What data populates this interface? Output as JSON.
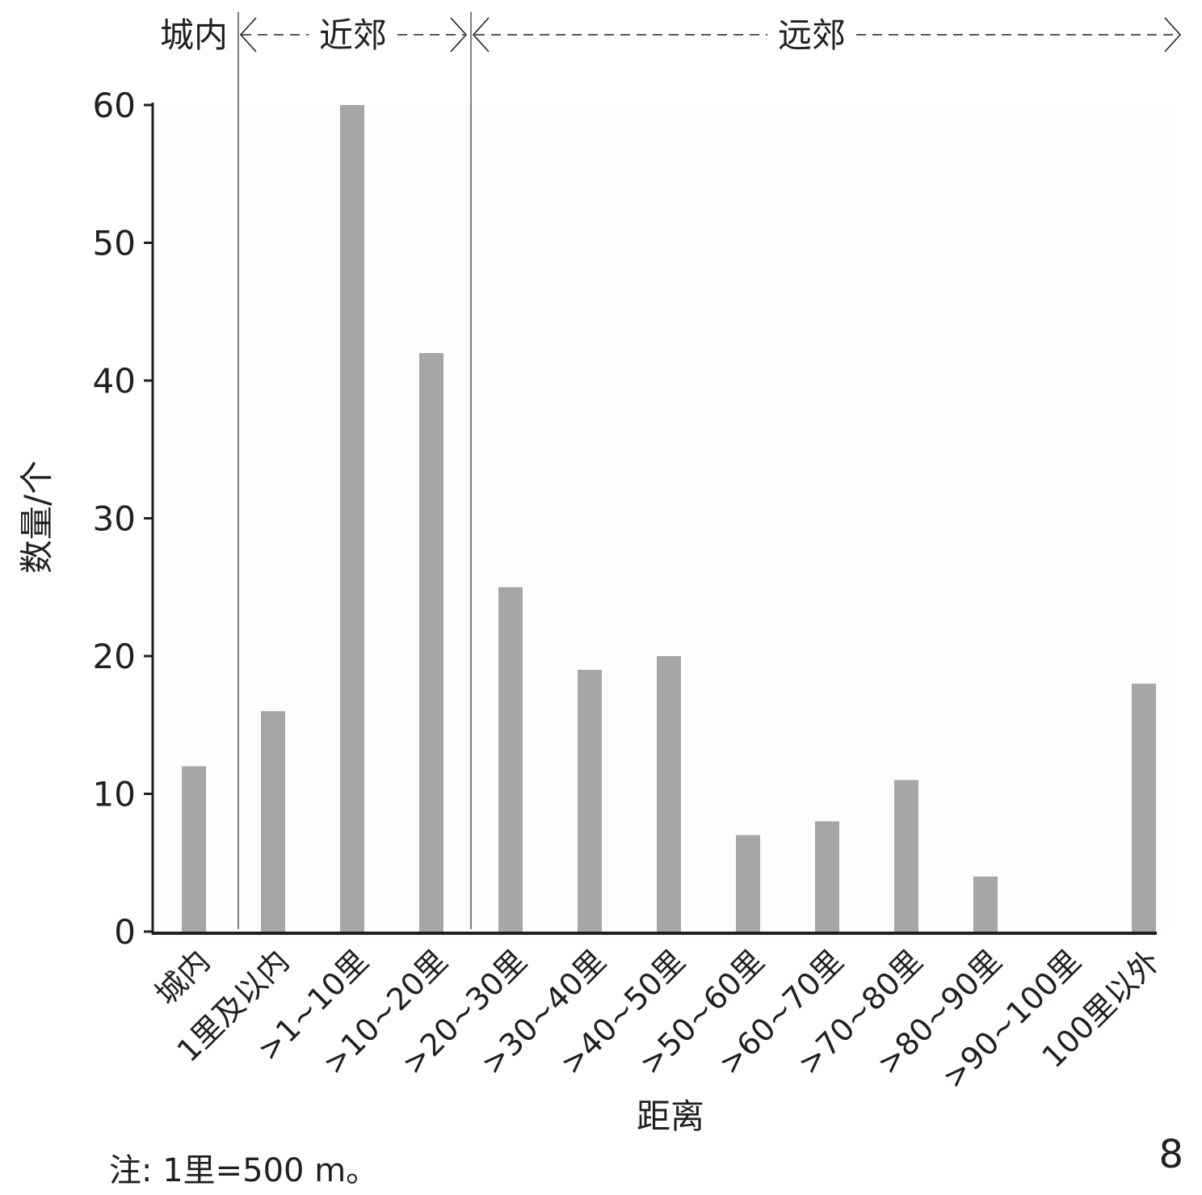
{
  "chart_data": {
    "type": "bar",
    "xlabel": "距离",
    "ylabel": "数量/个",
    "ylim": [
      0,
      60
    ],
    "yticks": [
      0,
      10,
      20,
      30,
      40,
      50,
      60
    ],
    "grid": false,
    "legend": "none",
    "bar_color": "#a6a6a6",
    "axis_color": "#231f20",
    "categories": [
      "城内",
      "1里及以内",
      ">1~10里",
      ">10~20里",
      ">20~30里",
      ">30~40里",
      ">40~50里",
      ">50~60里",
      ">60~70里",
      ">70~80里",
      ">80~90里",
      ">90~100里",
      "100里以外"
    ],
    "values": [
      12,
      16,
      60,
      42,
      25,
      19,
      20,
      7,
      8,
      11,
      4,
      0,
      18
    ],
    "regions": [
      {
        "label": "城内"
      },
      {
        "label": "近郊"
      },
      {
        "label": "远郊"
      }
    ]
  },
  "note": "注: 1里=500 m。",
  "figure_number": "8"
}
